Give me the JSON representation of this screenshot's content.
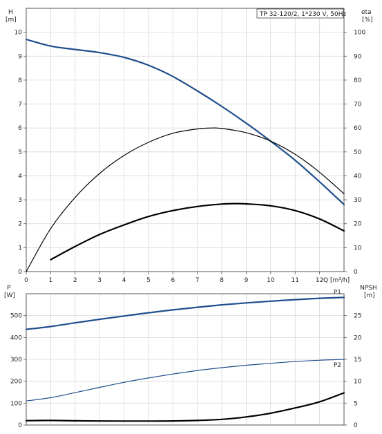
{
  "chart_data": [
    {
      "type": "line",
      "title_box": "TP 32-120/2, 1*230 V, 50Hz",
      "left_axis_label_1": "H",
      "left_axis_label_2": "[m]",
      "right_axis_label_1": "eta",
      "right_axis_label_2": "[%]",
      "xlabel": "Q [m³/h]",
      "xlim": [
        0,
        13
      ],
      "ylim_left": [
        0,
        11
      ],
      "ylim_right": [
        0,
        110
      ],
      "x_ticks": [
        "0",
        "1",
        "2",
        "3",
        "4",
        "5",
        "6",
        "7",
        "8",
        "9",
        "10",
        "11",
        "12"
      ],
      "y_ticks_left": [
        "0",
        "1",
        "2",
        "3",
        "4",
        "5",
        "6",
        "7",
        "8",
        "9",
        "10"
      ],
      "y_ticks_right": [
        "0",
        "10",
        "20",
        "30",
        "40",
        "50",
        "60",
        "70",
        "80",
        "90",
        "100"
      ],
      "grid": true,
      "series": [
        {
          "axis": "left",
          "color": "#1f4e8c",
          "x": [
            0,
            1,
            2,
            3,
            4,
            5,
            6,
            7,
            8,
            9,
            10,
            11,
            12,
            13
          ],
          "values": [
            9.7,
            9.42,
            9.28,
            9.15,
            8.95,
            8.62,
            8.15,
            7.55,
            6.9,
            6.2,
            5.45,
            4.65,
            3.75,
            2.8
          ]
        },
        {
          "axis": "right",
          "color": "#000000",
          "x": [
            0,
            1,
            2,
            3,
            4,
            5,
            6,
            7,
            7.6,
            8,
            9,
            10,
            11,
            12,
            13
          ],
          "values": [
            0,
            18,
            31,
            41,
            48.5,
            54,
            57.8,
            59.6,
            60,
            59.8,
            58,
            54.5,
            49,
            41.5,
            32.5
          ]
        },
        {
          "axis": "left",
          "color": "#000000",
          "x": [
            1,
            2,
            3,
            4,
            5,
            6,
            7,
            8,
            8.6,
            9,
            10,
            11,
            12,
            13
          ],
          "values": [
            0.5,
            1.05,
            1.55,
            1.95,
            2.3,
            2.55,
            2.72,
            2.82,
            2.84,
            2.83,
            2.75,
            2.55,
            2.2,
            1.7
          ]
        }
      ]
    },
    {
      "type": "line",
      "left_axis_label_1": "P",
      "left_axis_label_2": "[W]",
      "right_axis_label_1": "NPSH",
      "right_axis_label_2": "[m]",
      "xlim": [
        0,
        13
      ],
      "ylim_left": [
        0,
        600
      ],
      "ylim_right": [
        0,
        30
      ],
      "y_ticks_left": [
        "0",
        "100",
        "200",
        "300",
        "400",
        "500"
      ],
      "y_ticks_right": [
        "0",
        "5",
        "10",
        "15",
        "20",
        "25"
      ],
      "grid": true,
      "series": [
        {
          "name": "P1",
          "axis": "left",
          "color": "#1f4e8c",
          "x": [
            0,
            1,
            2,
            3,
            4,
            5,
            6,
            7,
            8,
            9,
            10,
            11,
            12,
            13
          ],
          "values": [
            437,
            450,
            467,
            483,
            498,
            513,
            526,
            538,
            549,
            558,
            566,
            573,
            579,
            583
          ]
        },
        {
          "name": "P2",
          "axis": "left",
          "color": "#1f4e8c",
          "x": [
            0,
            1,
            2,
            3,
            4,
            5,
            6,
            7,
            8,
            9,
            10,
            11,
            12,
            13
          ],
          "values": [
            110,
            125,
            148,
            172,
            195,
            215,
            233,
            249,
            262,
            273,
            282,
            290,
            296,
            300
          ]
        },
        {
          "axis": "right",
          "color": "#000000",
          "x": [
            0,
            1,
            2,
            3,
            4,
            5,
            6,
            7,
            8,
            9,
            10,
            11,
            12,
            13
          ],
          "values": [
            1,
            1.05,
            0.97,
            0.92,
            0.9,
            0.9,
            0.93,
            1.05,
            1.3,
            1.85,
            2.7,
            3.9,
            5.3,
            7.35
          ]
        }
      ]
    }
  ]
}
